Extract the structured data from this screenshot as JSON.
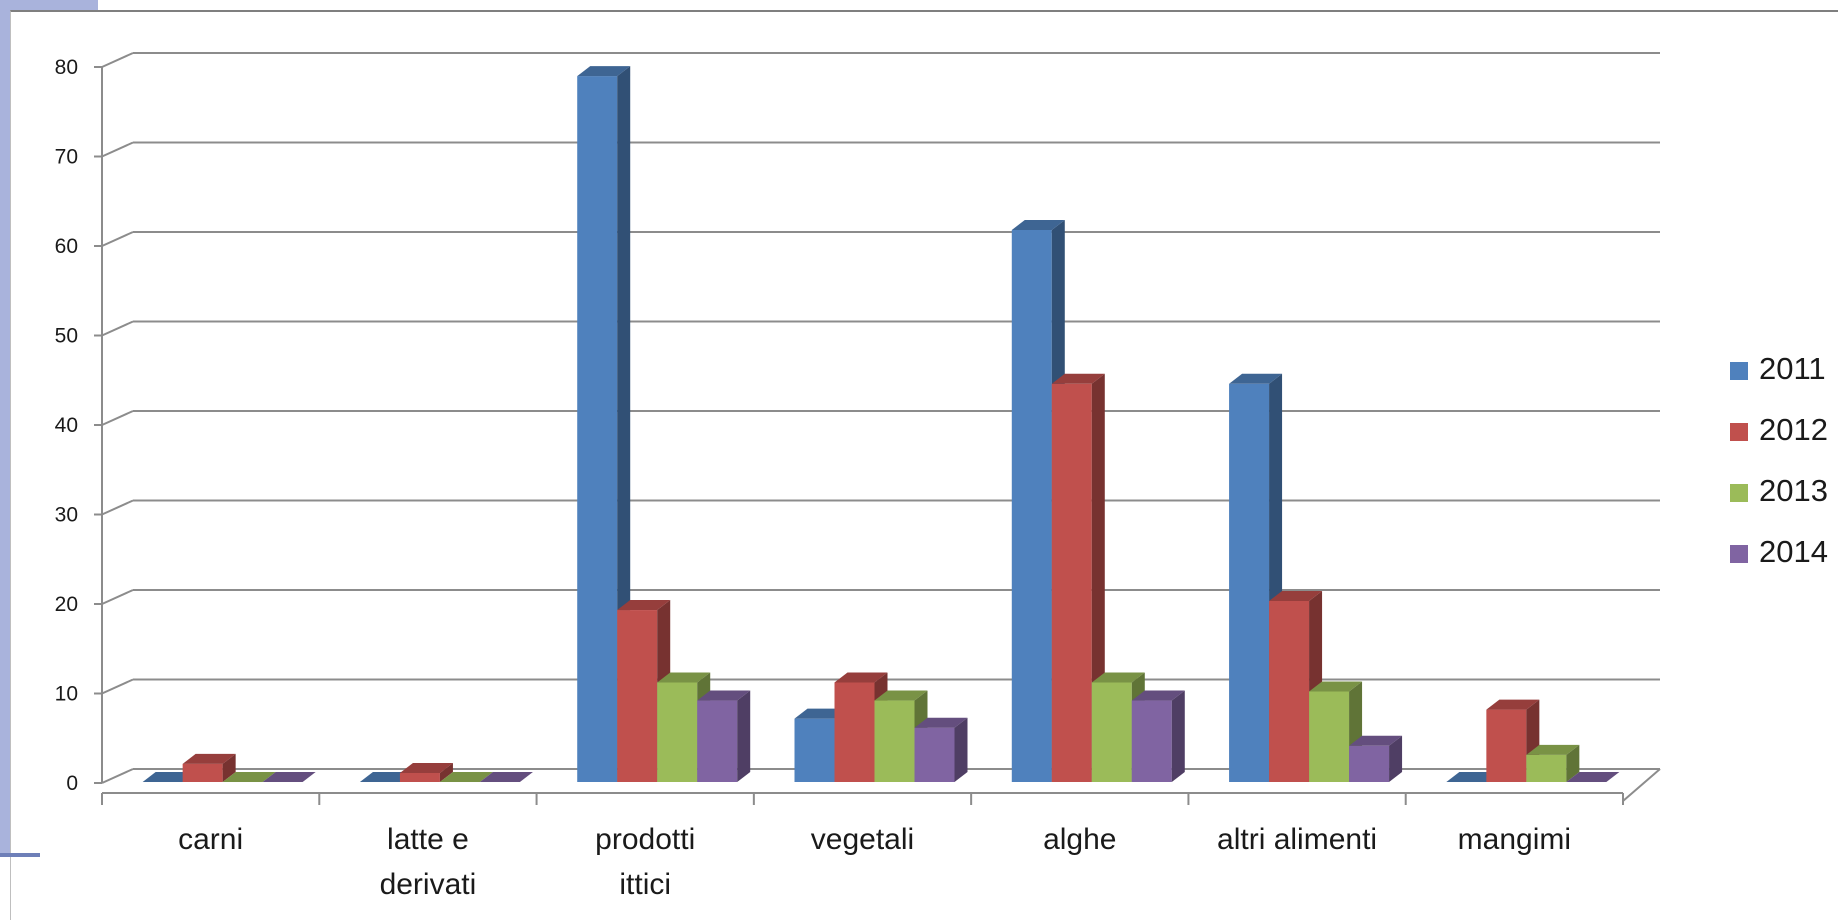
{
  "chart_data": {
    "type": "bar",
    "style": "3d-clustered-column",
    "categories": [
      [
        "carni"
      ],
      [
        "latte e",
        "derivati"
      ],
      [
        "prodotti",
        "ittici"
      ],
      [
        "vegetali"
      ],
      [
        "alghe"
      ],
      [
        "altri alimenti"
      ],
      [
        "mangimi"
      ]
    ],
    "series": [
      {
        "name": "2011",
        "color": "#4f81bd",
        "values": [
          0,
          0,
          78,
          7,
          61,
          44,
          0
        ]
      },
      {
        "name": "2012",
        "color": "#c0504d",
        "values": [
          2,
          1,
          19,
          11,
          44,
          20,
          8
        ]
      },
      {
        "name": "2013",
        "color": "#9bbb59",
        "values": [
          0,
          0,
          11,
          9,
          11,
          10,
          3
        ]
      },
      {
        "name": "2014",
        "color": "#8064a2",
        "values": [
          0,
          0,
          9,
          6,
          9,
          4,
          0
        ]
      }
    ],
    "ylim": [
      0,
      80
    ],
    "yticks": [
      0,
      10,
      20,
      30,
      40,
      50,
      60,
      70,
      80
    ],
    "grid": true,
    "legend_position": "right",
    "title": "",
    "xlabel": "",
    "ylabel": ""
  }
}
